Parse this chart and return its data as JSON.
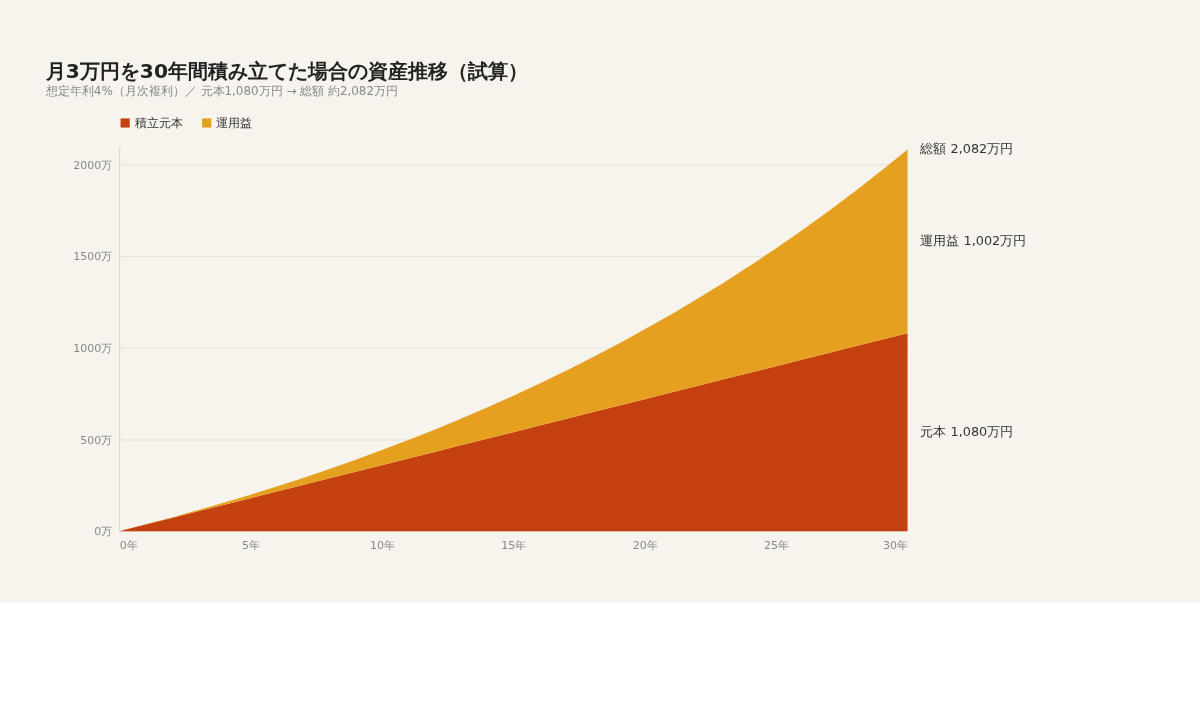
{
  "chart_data": {
    "type": "area",
    "title": "月3万円を30年間積み立てた場合の資産推移（試算）",
    "subtitle": "想定年利4%（月次複利）／ 元本1,080万円 → 総額 約2,082万円",
    "x": [
      0,
      1,
      2,
      3,
      4,
      5,
      6,
      7,
      8,
      9,
      10,
      11,
      12,
      13,
      14,
      15,
      16,
      17,
      18,
      19,
      20,
      21,
      22,
      23,
      24,
      25,
      26,
      27,
      28,
      29,
      30
    ],
    "series": [
      {
        "name": "積立元本",
        "color": "#c4410f",
        "values": [
          0,
          36,
          72,
          108,
          144,
          180,
          216,
          252,
          288,
          324,
          360,
          396,
          432,
          468,
          504,
          540,
          576,
          612,
          648,
          684,
          720,
          756,
          792,
          828,
          864,
          900,
          936,
          972,
          1008,
          1044,
          1080
        ]
      },
      {
        "name": "運用益",
        "color": "#e5a020",
        "values": [
          0,
          1,
          3,
          7,
          12,
          19,
          28,
          38,
          51,
          65,
          82,
          101,
          121,
          145,
          170,
          198,
          229,
          263,
          299,
          338,
          381,
          426,
          475,
          527,
          583,
          643,
          706,
          774,
          846,
          922,
          1002
        ]
      }
    ],
    "stacked": true,
    "xlim": [
      0,
      30
    ],
    "xticks": [
      {
        "value": 0,
        "label": "0年"
      },
      {
        "value": 5,
        "label": "5年"
      },
      {
        "value": 10,
        "label": "10年"
      },
      {
        "value": 15,
        "label": "15年"
      },
      {
        "value": 20,
        "label": "20年"
      },
      {
        "value": 25,
        "label": "25年"
      },
      {
        "value": 30,
        "label": "30年"
      }
    ],
    "ylim": [
      0,
      2100
    ],
    "yticks": [
      {
        "value": 0,
        "label": "0万"
      },
      {
        "value": 500,
        "label": "500万"
      },
      {
        "value": 1000,
        "label": "1000万"
      },
      {
        "value": 1500,
        "label": "1500万"
      },
      {
        "value": 2000,
        "label": "2000万"
      }
    ],
    "grid": "y",
    "legend": "top left",
    "annotations": [
      "総額 2,082万円",
      "運用益 1,002万円",
      "元本 1,080万円"
    ]
  }
}
